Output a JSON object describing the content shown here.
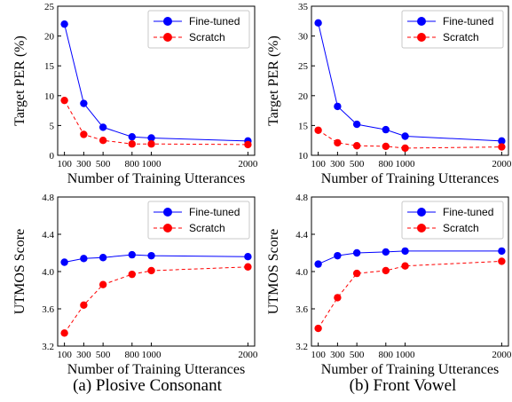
{
  "chart_data": [
    {
      "type": "line",
      "panel": "plosive",
      "xlabel": "Number of Training Utterances",
      "ylabel": "Target PER (%)",
      "x": [
        100,
        300,
        500,
        800,
        1000,
        2000
      ],
      "x_tick_labels": [
        "100",
        "300",
        "500",
        "800",
        "1000",
        "2000"
      ],
      "ylim": [
        0,
        25
      ],
      "y_ticks": [
        "0",
        "5",
        "10",
        "15",
        "20",
        "25"
      ],
      "legend_position": "top-right",
      "grid": false,
      "series": [
        {
          "name": "Fine-tuned",
          "color": "#0000ff",
          "linestyle": "solid",
          "values": [
            22.0,
            8.7,
            4.7,
            3.1,
            2.9,
            2.4
          ]
        },
        {
          "name": "Scratch",
          "color": "#ff0000",
          "linestyle": "dashed",
          "values": [
            9.2,
            3.5,
            2.5,
            1.9,
            1.9,
            1.8
          ]
        }
      ]
    },
    {
      "type": "line",
      "panel": "front-vowel",
      "xlabel": "Number of Training Utterances",
      "ylabel": "Target PER (%)",
      "x": [
        100,
        300,
        500,
        800,
        1000,
        2000
      ],
      "x_tick_labels": [
        "100",
        "300",
        "500",
        "800",
        "1000",
        "2000"
      ],
      "ylim": [
        10,
        35
      ],
      "y_ticks": [
        "10",
        "15",
        "20",
        "25",
        "30",
        "35"
      ],
      "legend_position": "top-right",
      "grid": false,
      "series": [
        {
          "name": "Fine-tuned",
          "color": "#0000ff",
          "linestyle": "solid",
          "values": [
            32.2,
            18.2,
            15.2,
            14.3,
            13.2,
            12.4
          ]
        },
        {
          "name": "Scratch",
          "color": "#ff0000",
          "linestyle": "dashed",
          "values": [
            14.2,
            12.1,
            11.6,
            11.5,
            11.2,
            11.4
          ]
        }
      ]
    },
    {
      "type": "line",
      "panel": "plosive",
      "xlabel": "Number of Training Utterances",
      "ylabel": "UTMOS Score",
      "x": [
        100,
        300,
        500,
        800,
        1000,
        2000
      ],
      "x_tick_labels": [
        "100",
        "300",
        "500",
        "800",
        "1000",
        "2000"
      ],
      "ylim": [
        3.2,
        4.8
      ],
      "y_ticks": [
        "3.2",
        "3.6",
        "4.0",
        "4.4",
        "4.8"
      ],
      "legend_position": "top-right",
      "grid": false,
      "series": [
        {
          "name": "Fine-tuned",
          "color": "#0000ff",
          "linestyle": "solid",
          "values": [
            4.1,
            4.14,
            4.15,
            4.18,
            4.17,
            4.16
          ]
        },
        {
          "name": "Scratch",
          "color": "#ff0000",
          "linestyle": "dashed",
          "values": [
            3.34,
            3.64,
            3.86,
            3.97,
            4.01,
            4.05
          ]
        }
      ]
    },
    {
      "type": "line",
      "panel": "front-vowel",
      "xlabel": "Number of Training Utterances",
      "ylabel": "UTMOS Score",
      "x": [
        100,
        300,
        500,
        800,
        1000,
        2000
      ],
      "x_tick_labels": [
        "100",
        "300",
        "500",
        "800",
        "1000",
        "2000"
      ],
      "ylim": [
        3.2,
        4.8
      ],
      "y_ticks": [
        "3.2",
        "3.6",
        "4.0",
        "4.4",
        "4.8"
      ],
      "legend_position": "top-right",
      "grid": false,
      "series": [
        {
          "name": "Fine-tuned",
          "color": "#0000ff",
          "linestyle": "solid",
          "values": [
            4.08,
            4.17,
            4.2,
            4.21,
            4.22,
            4.22
          ]
        },
        {
          "name": "Scratch",
          "color": "#ff0000",
          "linestyle": "dashed",
          "values": [
            3.39,
            3.72,
            3.98,
            4.01,
            4.06,
            4.11
          ]
        }
      ]
    }
  ],
  "captions": {
    "left": "(a) Plosive Consonant",
    "right": "(b) Front Vowel"
  }
}
